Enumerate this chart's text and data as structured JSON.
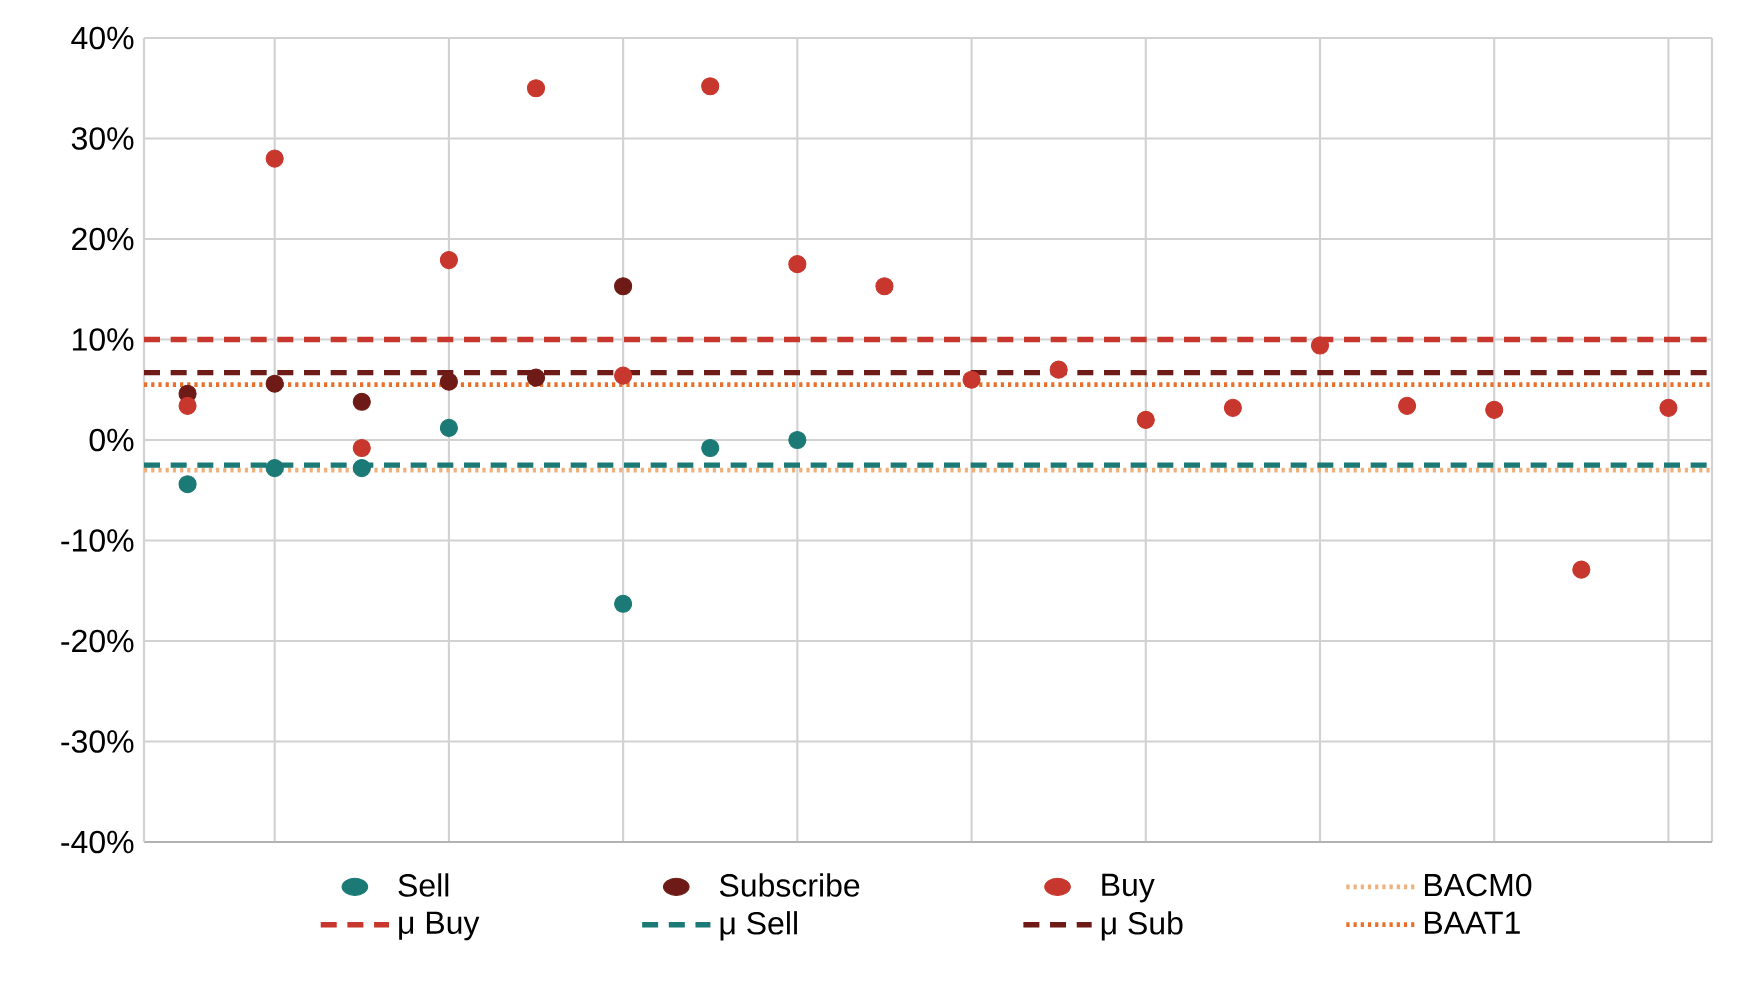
{
  "chart_data": {
    "type": "scatter",
    "categories": [
      null,
      null,
      null,
      null,
      null,
      null,
      null,
      null,
      null,
      null,
      null,
      null,
      null,
      null,
      null,
      null,
      null,
      null
    ],
    "series": [
      {
        "name": "Sell",
        "color": "#1b7a76",
        "values": [
          -4.4,
          -2.8,
          -2.8,
          1.2,
          null,
          -16.3,
          -0.8,
          0,
          null,
          null,
          null,
          null,
          null,
          null,
          null,
          null,
          null,
          null
        ]
      },
      {
        "name": "Subscribe",
        "color": "#6e1b17",
        "values": [
          4.6,
          5.6,
          3.8,
          5.8,
          6.2,
          15.3,
          null,
          null,
          null,
          null,
          null,
          null,
          null,
          null,
          null,
          null,
          null,
          null
        ]
      },
      {
        "name": "Buy",
        "color": "#c8372d",
        "values": [
          3.4,
          28,
          -0.8,
          17.9,
          35,
          6.4,
          35.2,
          17.5,
          15.3,
          6,
          7,
          2,
          3.2,
          9.4,
          3.4,
          3,
          -12.9,
          3.2
        ]
      }
    ],
    "ref_lines": [
      {
        "axis": "y",
        "value": -3,
        "label": "BACM0",
        "color": "#f0b07a",
        "line_style": "dotted"
      },
      {
        "axis": "y",
        "value": 10,
        "label": "μ Buy",
        "color": "#c8372d",
        "line_style": "dashed"
      },
      {
        "axis": "y",
        "value": -2.5,
        "label": "μ Sell",
        "color": "#1b7a76",
        "line_style": "dashed"
      },
      {
        "axis": "y",
        "value": 6.7,
        "label": "μ Sub",
        "color": "#6e1b17",
        "line_style": "dashed"
      },
      {
        "axis": "y",
        "value": 5.5,
        "label": "BAAT1",
        "color": "#e8702a",
        "line_style": "dotted"
      }
    ],
    "ylim": [
      -40,
      40
    ],
    "yticks": [
      {
        "value": -40,
        "label": "-40%"
      },
      {
        "value": -30,
        "label": "-30%"
      },
      {
        "value": -20,
        "label": "-20%"
      },
      {
        "value": -10,
        "label": "-10%"
      },
      {
        "value": 0,
        "label": "0%"
      },
      {
        "value": 10,
        "label": "10%"
      },
      {
        "value": 20,
        "label": "20%"
      },
      {
        "value": 30,
        "label": "30%"
      },
      {
        "value": 40,
        "label": "40%"
      }
    ],
    "tick_labels": "y",
    "grid": true,
    "legend": "bottom"
  }
}
